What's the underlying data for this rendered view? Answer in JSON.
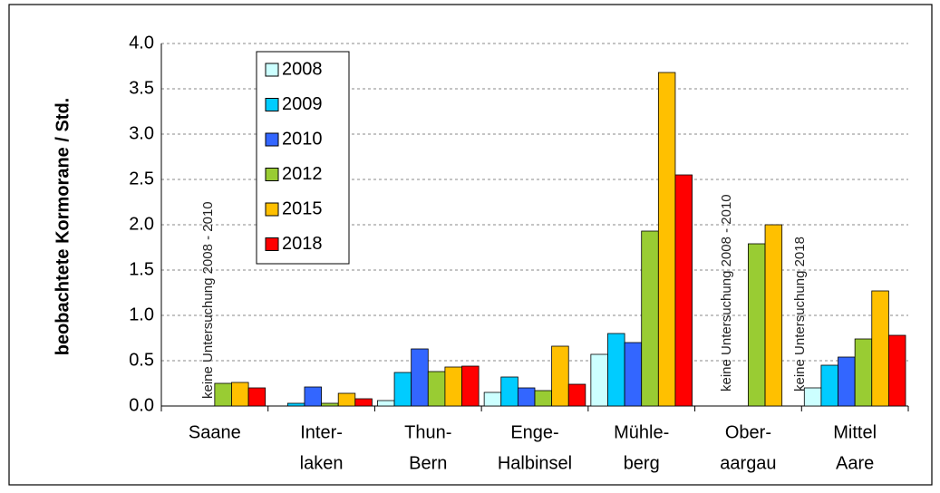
{
  "chart_data": {
    "type": "bar",
    "y_label": "beobachtete Kormorane / Std.",
    "categories": [
      [
        "Saane"
      ],
      [
        "Inter-",
        "laken"
      ],
      [
        "Thun-",
        "Bern"
      ],
      [
        "Enge-",
        "Halbinsel"
      ],
      [
        "Mühle-",
        "berg"
      ],
      [
        "Ober-",
        "aargau"
      ],
      [
        "Mittel",
        "Aare"
      ]
    ],
    "series": [
      {
        "name": "2008",
        "color": "#ccffff",
        "values": [
          null,
          0,
          0.06,
          0.15,
          0.57,
          null,
          0.2
        ]
      },
      {
        "name": "2009",
        "color": "#00ccff",
        "values": [
          null,
          0.03,
          0.37,
          0.32,
          0.8,
          null,
          0.45
        ]
      },
      {
        "name": "2010",
        "color": "#3366ff",
        "values": [
          null,
          0.21,
          0.63,
          0.2,
          0.7,
          null,
          0.54
        ]
      },
      {
        "name": "2012",
        "color": "#99cc33",
        "values": [
          0.25,
          0.03,
          0.38,
          0.17,
          1.93,
          1.79,
          0.74
        ]
      },
      {
        "name": "2015",
        "color": "#ffc000",
        "values": [
          0.26,
          0.14,
          0.43,
          0.66,
          3.68,
          2.0,
          1.27
        ]
      },
      {
        "name": "2018",
        "color": "#ff0000",
        "values": [
          0.2,
          0.08,
          0.44,
          0.24,
          2.55,
          null,
          0.78
        ]
      }
    ],
    "annotations": [
      "keine Untersuchung 2008 - 2010",
      "keine Untersuchung 2008 - 2010",
      "keine Untersuchung 2018"
    ],
    "ylim": [
      0,
      4
    ],
    "yticks": [
      {
        "value": 0,
        "label": "0.0"
      },
      {
        "value": 0.5,
        "label": "0.5"
      },
      {
        "value": 1,
        "label": "1.0"
      },
      {
        "value": 1.5,
        "label": "1.5"
      },
      {
        "value": 2,
        "label": "2.0"
      },
      {
        "value": 2.5,
        "label": "2.5"
      },
      {
        "value": 3,
        "label": "3.0"
      },
      {
        "value": 3.5,
        "label": "3.5"
      },
      {
        "value": 4,
        "label": "4.0"
      }
    ],
    "grid": true
  }
}
